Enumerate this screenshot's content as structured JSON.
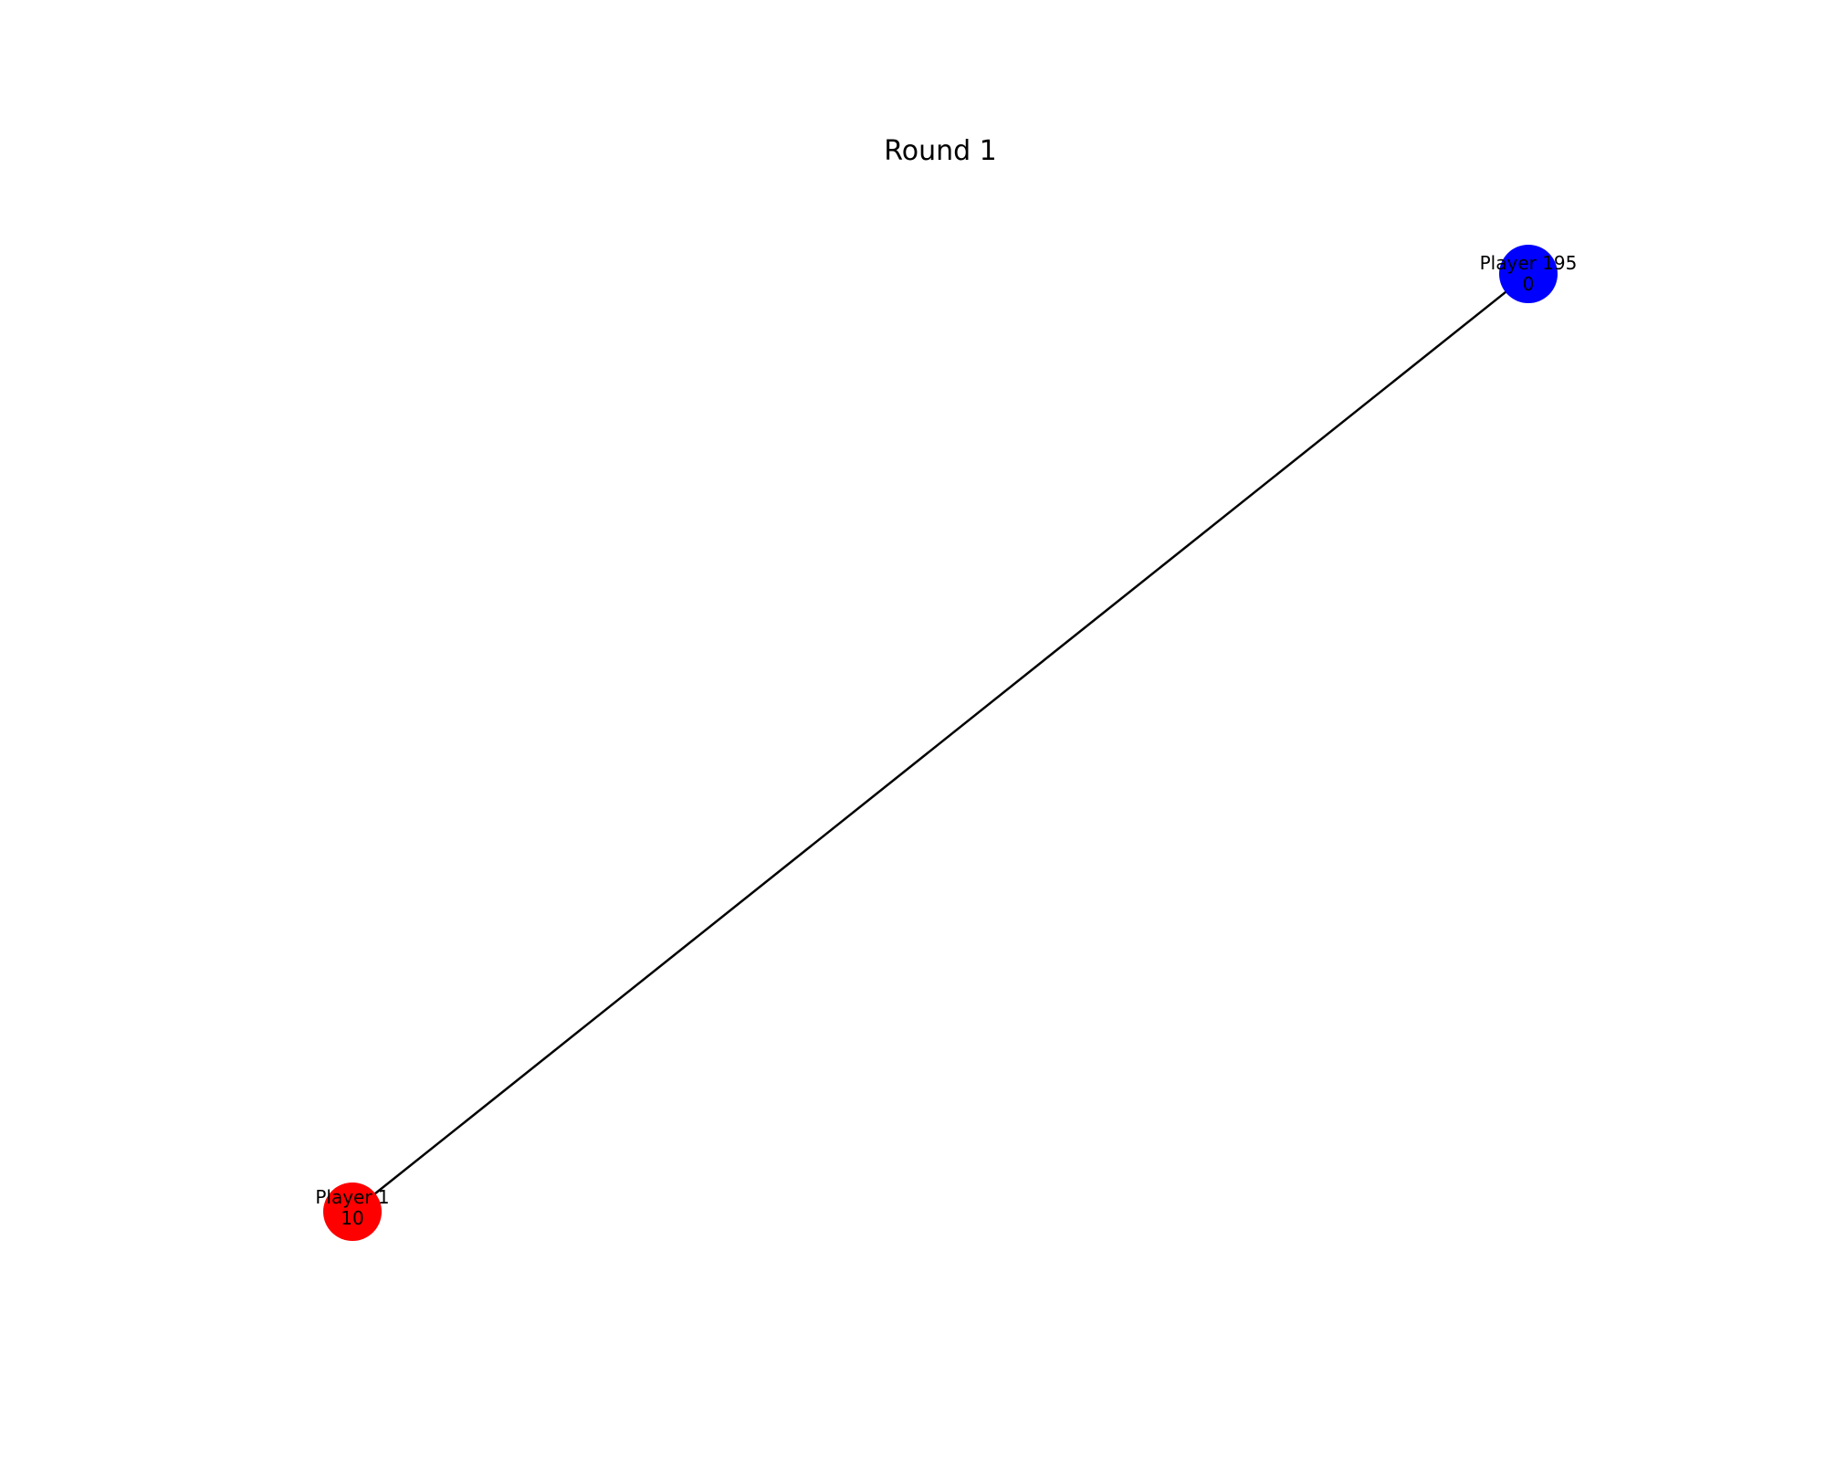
{
  "title": "Round 1",
  "nodes": [
    {
      "id": "player-195",
      "name": "Player 195",
      "value": "0",
      "color": "#0000ff"
    },
    {
      "id": "player-1",
      "name": "Player 1",
      "value": "10",
      "color": "#ff0000"
    }
  ],
  "edges": [
    {
      "from": "player-195",
      "to": "player-1",
      "color": "#000000"
    }
  ]
}
